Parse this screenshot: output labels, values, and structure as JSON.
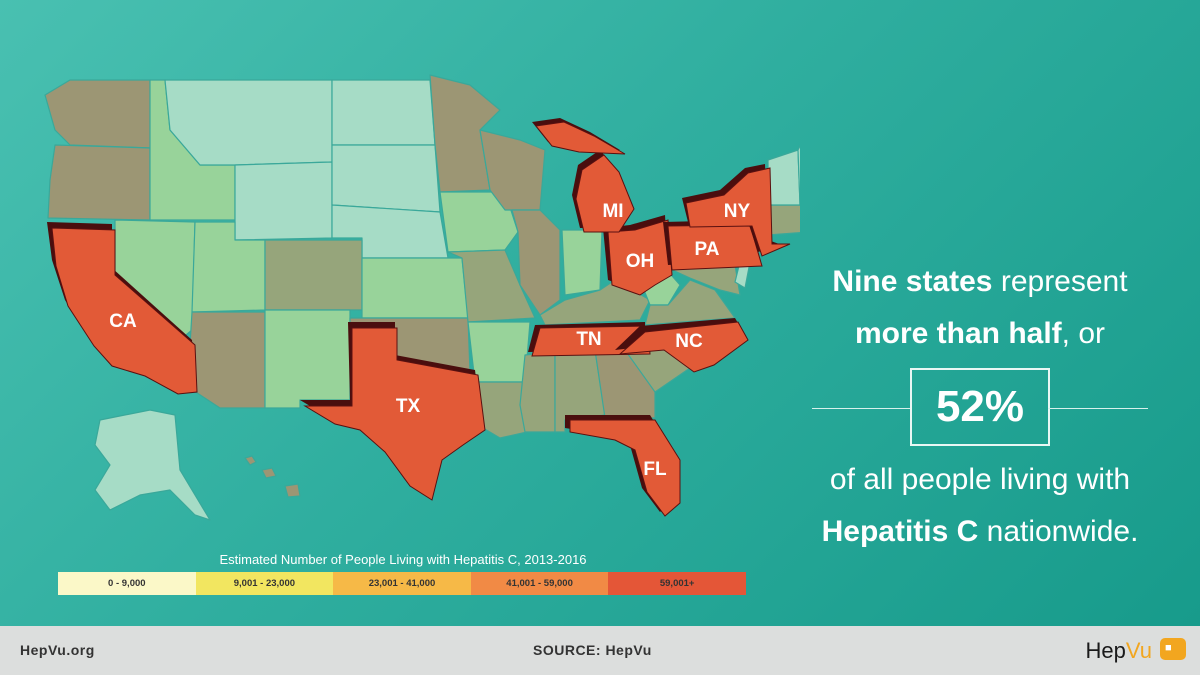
{
  "map": {
    "state_labels": {
      "ca": "CA",
      "tx": "TX",
      "fl": "FL",
      "tn": "TN",
      "nc": "NC",
      "oh": "OH",
      "pa": "PA",
      "ny": "NY",
      "mi": "MI"
    },
    "highlight_color": "#e25a37"
  },
  "legend": {
    "title": "Estimated Number of People Living with Hepatitis C, 2013-2016",
    "bins": [
      {
        "label": "0 - 9,000",
        "color": "#fbf8c8"
      },
      {
        "label": "9,001 - 23,000",
        "color": "#f2e660"
      },
      {
        "label": "23,001 - 41,000",
        "color": "#f6b947"
      },
      {
        "label": "41,001 - 59,000",
        "color": "#f18a45"
      },
      {
        "label": "59,001+",
        "color": "#e45637"
      }
    ]
  },
  "stat": {
    "l1_bold": "Nine states",
    "l1_rest": " represent",
    "l2_bold": "more than half",
    "l2_rest": ", or",
    "percent": "52%",
    "l3": "of all people living with",
    "l4_bold": "Hepatitis C",
    "l4_rest": " nationwide."
  },
  "footer": {
    "site": "HepVu.org",
    "source": "SOURCE: HepVu",
    "brand_hep": "Hep",
    "brand_vu": "Vu"
  }
}
